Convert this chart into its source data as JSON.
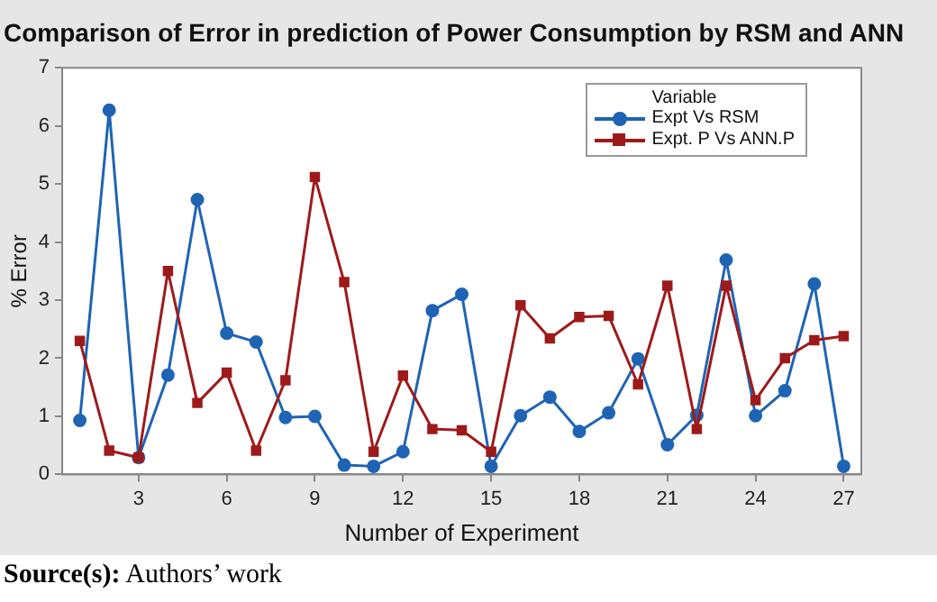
{
  "chart_data": {
    "type": "line",
    "title": "Comparison of Error in prediction of Power Consumption by RSM and ANN",
    "xlabel": "Number of Experiment",
    "ylabel": "% Error",
    "legend_title": "Variable",
    "legend": "top right",
    "grid": false,
    "line_style": "solid",
    "x": [
      1,
      2,
      3,
      4,
      5,
      6,
      7,
      8,
      9,
      10,
      11,
      12,
      13,
      14,
      15,
      16,
      17,
      18,
      19,
      20,
      21,
      22,
      23,
      24,
      25,
      26,
      27
    ],
    "xlim": [
      0.4,
      27.6
    ],
    "xticks": [
      3,
      6,
      9,
      12,
      15,
      18,
      21,
      24,
      27
    ],
    "ylim": [
      0,
      7
    ],
    "yticks": [
      0,
      1,
      2,
      3,
      4,
      5,
      6,
      7
    ],
    "series": [
      {
        "name": "Expt Vs RSM",
        "color": "#1f64b4",
        "marker": "circle",
        "values": [
          0.93,
          6.27,
          0.29,
          1.71,
          4.73,
          2.43,
          2.28,
          0.98,
          1.0,
          0.16,
          0.14,
          0.39,
          2.82,
          3.1,
          0.14,
          1.01,
          1.33,
          0.74,
          1.06,
          1.99,
          0.51,
          1.02,
          3.69,
          1.01,
          1.44,
          3.28,
          0.14
        ]
      },
      {
        "name": "Expt.  P Vs ANN.P",
        "color": "#9e1a1a",
        "marker": "square",
        "values": [
          2.3,
          0.41,
          0.29,
          3.5,
          1.23,
          1.75,
          0.41,
          1.62,
          5.12,
          3.31,
          0.39,
          1.7,
          0.78,
          0.76,
          0.39,
          2.91,
          2.34,
          2.71,
          2.73,
          1.55,
          3.25,
          0.78,
          3.25,
          1.28,
          2.0,
          2.31,
          2.38
        ]
      }
    ],
    "annotations": [
      "Source(s): Authors’ work"
    ]
  }
}
